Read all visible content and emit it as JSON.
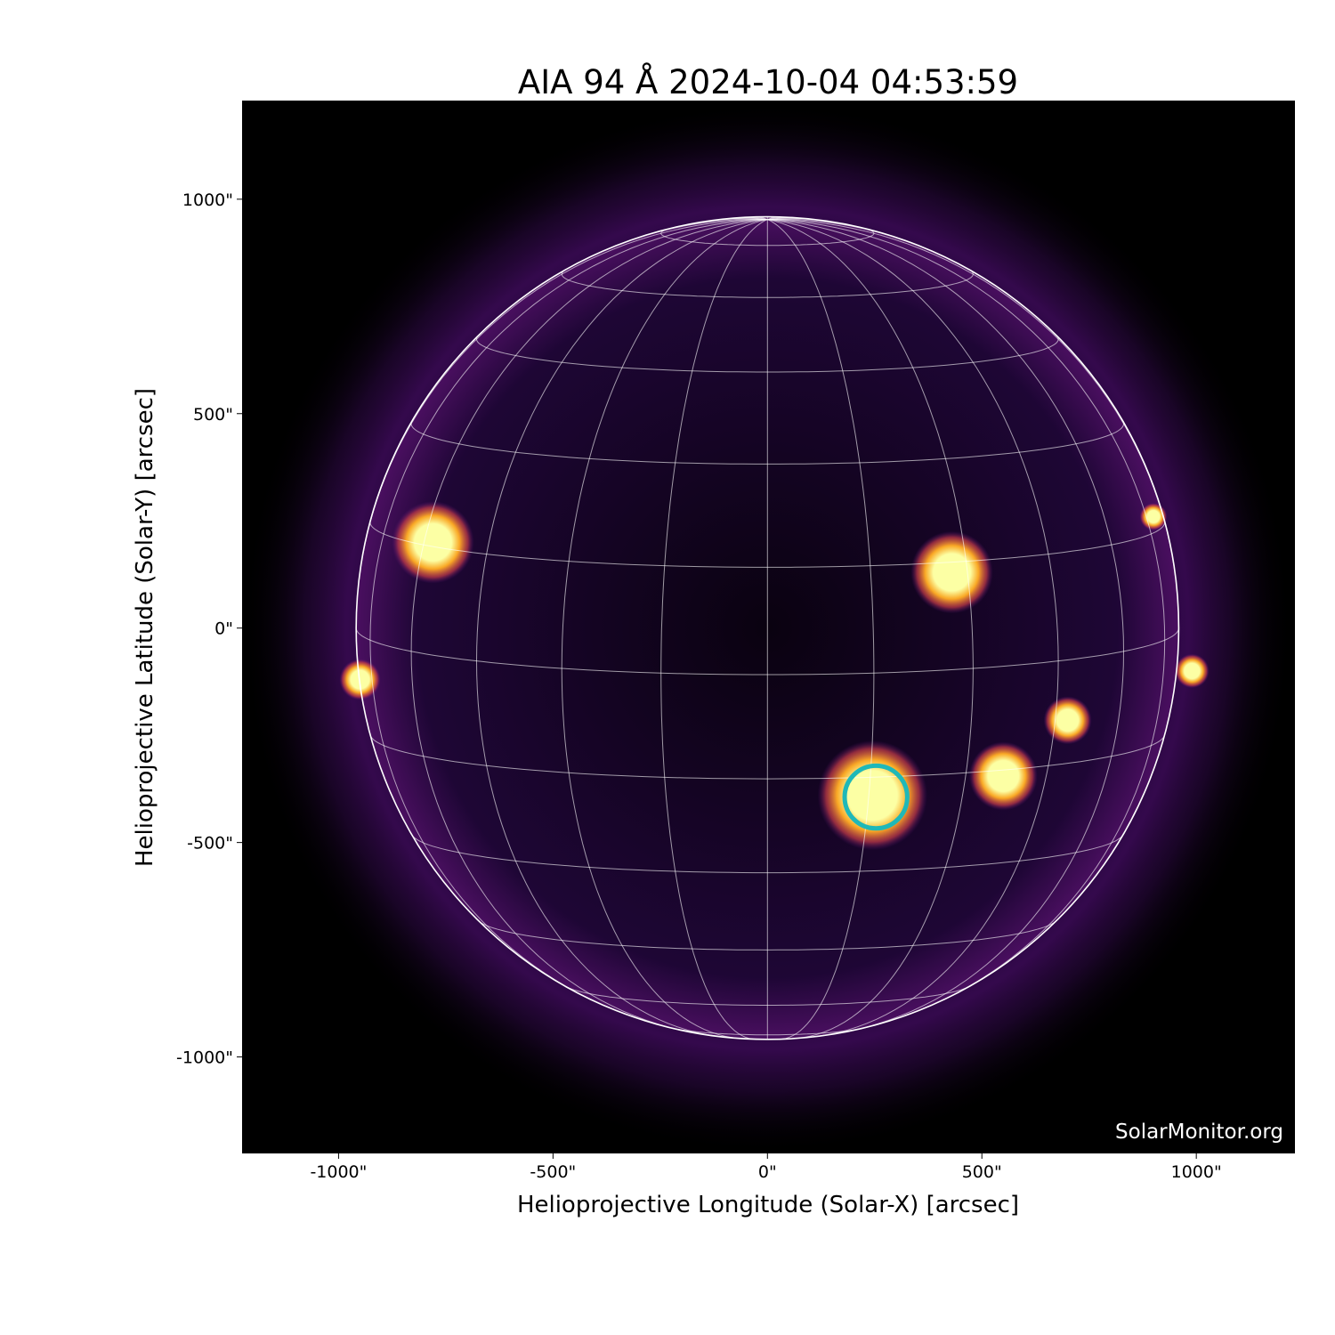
{
  "chart_data": {
    "type": "heatmap",
    "title": "AIA 94 Å 2024-10-04 04:53:59",
    "xlabel": "Helioprojective Longitude (Solar-X) [arcsec]",
    "ylabel": "Helioprojective Latitude (Solar-Y) [arcsec]",
    "xlim": [
      -1225,
      1230
    ],
    "ylim": [
      -1225,
      1230
    ],
    "xticks": [
      -1000,
      -500,
      0,
      500,
      1000
    ],
    "xtick_labels": [
      "-1000\"",
      "-500\"",
      "0\"",
      "500\"",
      "1000\""
    ],
    "yticks": [
      1000,
      500,
      0,
      -500,
      -1000
    ],
    "ytick_labels": [
      "1000\"",
      "500\"",
      "0\"",
      "-500\"",
      "-1000\""
    ],
    "colormap": "inferno",
    "solar_radius_arcsec": 959,
    "heliographic_grid_spacing_deg": 15,
    "grid": true,
    "grid_color": "#ffffff",
    "highlight_circle": {
      "center": [
        253,
        -394
      ],
      "radius": 73,
      "color": "#1fb8b8"
    },
    "bright_regions": [
      {
        "x": 245,
        "y": -390,
        "r": 80
      },
      {
        "x": 550,
        "y": -345,
        "r": 50
      },
      {
        "x": 700,
        "y": -215,
        "r": 35
      },
      {
        "x": -780,
        "y": 200,
        "r": 60
      },
      {
        "x": 430,
        "y": 130,
        "r": 60
      },
      {
        "x": 990,
        "y": -100,
        "r": 25
      },
      {
        "x": -950,
        "y": -120,
        "r": 30
      },
      {
        "x": 900,
        "y": 260,
        "r": 20
      }
    ],
    "watermark": "SolarMonitor.org"
  }
}
